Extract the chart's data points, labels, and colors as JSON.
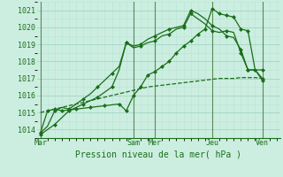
{
  "background_color": "#cceee0",
  "grid_color_major": "#a8d8c8",
  "grid_color_minor": "#b8e4d4",
  "line_color": "#1a6e1a",
  "title": "Pression niveau de la mer( hPa )",
  "ylim": [
    1013.5,
    1021.5
  ],
  "yticks": [
    1014,
    1015,
    1016,
    1017,
    1018,
    1019,
    1020,
    1021
  ],
  "day_labels": [
    "Mar",
    "Sam",
    "Mer",
    "Jeu",
    "Ven"
  ],
  "day_x": [
    0,
    13,
    16,
    24,
    31
  ],
  "xmin": 0,
  "xmax": 33,
  "series1_x": [
    0,
    1,
    2,
    3,
    4,
    5,
    6,
    7,
    8,
    9,
    10,
    11,
    12,
    13,
    14,
    15,
    16,
    17,
    18,
    19,
    20,
    21,
    22,
    23,
    24,
    25,
    26,
    27,
    28,
    29,
    30,
    31
  ],
  "series1_y": [
    1013.7,
    1014.0,
    1014.3,
    1014.7,
    1015.1,
    1015.3,
    1015.5,
    1015.7,
    1015.9,
    1016.2,
    1016.5,
    1017.5,
    1019.1,
    1018.9,
    1019.0,
    1019.3,
    1019.5,
    1019.7,
    1019.9,
    1020.0,
    1020.1,
    1021.0,
    1020.8,
    1020.5,
    1020.1,
    1019.9,
    1019.5,
    1019.4,
    1018.7,
    1017.5,
    1017.5,
    1017.0
  ],
  "series2_x": [
    0,
    1,
    2,
    3,
    4,
    5,
    6,
    7,
    8,
    9,
    10,
    11,
    12,
    13,
    14,
    15,
    16,
    17,
    18,
    19,
    20,
    21,
    22,
    23,
    24,
    25,
    26,
    27,
    28,
    29,
    30,
    31
  ],
  "series2_y": [
    1013.8,
    1014.2,
    1015.1,
    1015.3,
    1015.2,
    1015.5,
    1015.8,
    1016.1,
    1016.5,
    1016.9,
    1017.3,
    1017.7,
    1019.1,
    1018.8,
    1018.9,
    1019.1,
    1019.2,
    1019.5,
    1019.6,
    1019.9,
    1020.0,
    1020.8,
    1020.5,
    1020.2,
    1019.8,
    1019.7,
    1019.8,
    1019.7,
    1018.5,
    1017.5,
    1017.5,
    1016.9
  ],
  "series3_x": [
    0,
    1,
    2,
    3,
    5,
    7,
    9,
    11,
    12,
    13,
    14,
    15,
    16,
    17,
    18,
    19,
    20,
    21,
    22,
    23,
    24,
    25,
    26,
    27,
    28,
    29,
    30,
    31
  ],
  "series3_y": [
    1013.8,
    1015.1,
    1015.2,
    1015.1,
    1015.2,
    1015.3,
    1015.4,
    1015.5,
    1015.1,
    1016.0,
    1016.5,
    1017.2,
    1017.4,
    1017.7,
    1018.0,
    1018.5,
    1018.9,
    1019.2,
    1019.6,
    1019.9,
    1021.1,
    1020.8,
    1020.7,
    1020.6,
    1019.9,
    1019.8,
    1017.5,
    1017.5
  ],
  "series_flat_x": [
    0,
    1,
    2,
    3,
    4,
    5,
    6,
    7,
    8,
    9,
    10,
    11,
    12,
    13,
    14,
    15,
    16,
    17,
    18,
    19,
    20,
    21,
    22,
    23,
    24,
    25,
    26,
    27,
    28,
    29,
    30,
    31
  ],
  "series_flat_y": [
    1015.0,
    1015.1,
    1015.2,
    1015.3,
    1015.4,
    1015.5,
    1015.6,
    1015.7,
    1015.8,
    1015.9,
    1016.0,
    1016.1,
    1016.2,
    1016.3,
    1016.4,
    1016.5,
    1016.55,
    1016.6,
    1016.65,
    1016.7,
    1016.75,
    1016.8,
    1016.85,
    1016.9,
    1016.95,
    1017.0,
    1017.0,
    1017.0,
    1017.05,
    1017.05,
    1017.05,
    1017.0
  ],
  "marker_series1_x": [
    0,
    2,
    4,
    6,
    8,
    10,
    12,
    14,
    16,
    18,
    20,
    21,
    24,
    26,
    28,
    29,
    31
  ],
  "marker_series1_y": [
    1013.7,
    1014.3,
    1015.1,
    1015.5,
    1015.9,
    1016.5,
    1019.1,
    1019.0,
    1019.5,
    1019.9,
    1020.1,
    1021.0,
    1020.1,
    1019.5,
    1018.7,
    1017.5,
    1017.0
  ],
  "marker_series2_x": [
    0,
    2,
    4,
    6,
    8,
    10,
    12,
    14,
    16,
    18,
    20,
    21,
    24,
    26,
    28,
    29,
    31
  ],
  "marker_series2_y": [
    1013.8,
    1015.1,
    1015.2,
    1015.8,
    1016.5,
    1017.3,
    1019.1,
    1018.9,
    1019.2,
    1019.6,
    1020.0,
    1020.8,
    1019.8,
    1019.8,
    1018.5,
    1017.5,
    1016.9
  ],
  "marker_series3_x": [
    0,
    1,
    2,
    3,
    5,
    7,
    9,
    11,
    12,
    13,
    14,
    15,
    16,
    17,
    18,
    19,
    20,
    21,
    22,
    23,
    24,
    25,
    26,
    27,
    28,
    29,
    30,
    31
  ],
  "marker_series3_y": [
    1013.8,
    1015.1,
    1015.2,
    1015.1,
    1015.2,
    1015.3,
    1015.4,
    1015.5,
    1015.1,
    1016.0,
    1016.5,
    1017.2,
    1017.4,
    1017.7,
    1018.0,
    1018.5,
    1018.9,
    1019.2,
    1019.6,
    1019.9,
    1021.1,
    1020.8,
    1020.7,
    1020.6,
    1019.9,
    1019.8,
    1017.5,
    1017.5
  ]
}
